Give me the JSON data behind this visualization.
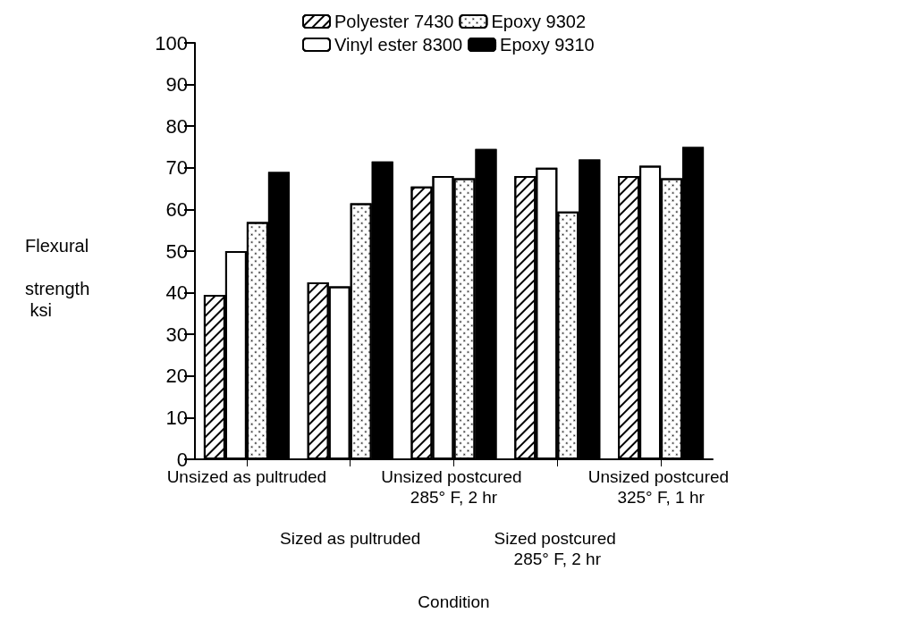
{
  "chart_data": {
    "type": "bar",
    "categories": [
      "Unsized as pultruded",
      "Sized as pultruded",
      "Unsized postcured 285° F, 2 hr",
      "Sized postcured 285° F, 2 hr",
      "Unsized postcured 325° F, 1 hr"
    ],
    "series": [
      {
        "name": "Polyester 7430",
        "color": "#ffffff",
        "values": [
          39.5,
          42.5,
          65.5,
          68,
          68
        ]
      },
      {
        "name": "Vinyl ester 8300",
        "color": "#ffffff",
        "values": [
          50,
          41.5,
          68,
          70,
          70.5
        ]
      },
      {
        "name": "Epoxy 9302",
        "color": "#ffffff",
        "values": [
          57,
          61.5,
          67.5,
          59.5,
          67.5
        ]
      },
      {
        "name": "Epoxy 9310",
        "color": "#000000",
        "values": [
          69,
          71.5,
          74.5,
          72,
          75
        ]
      }
    ],
    "xlabel": "Condition",
    "ylabel": "Flexural strength ksi",
    "ylim": [
      0,
      100
    ],
    "yticks": [
      0,
      10,
      20,
      30,
      40,
      50,
      60,
      70,
      80,
      90,
      100
    ],
    "grid": false,
    "legend": "top"
  }
}
